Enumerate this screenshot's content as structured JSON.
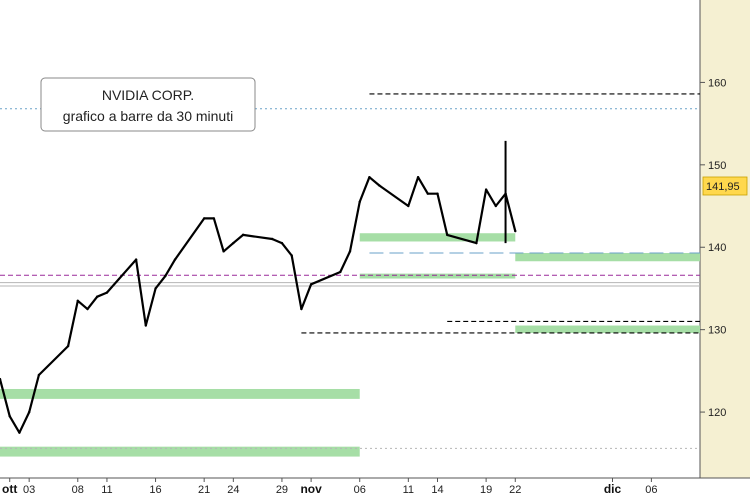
{
  "chart_data": {
    "type": "line",
    "title": "NVIDIA CORP.",
    "subtitle": "grafico a barre da 30 minuti",
    "last_price_label": "141,95",
    "colors": {
      "price": "#000000",
      "support_zone": "#a6dea6",
      "right_panel": "#f5f0d2",
      "last_price_box": "#ffd84d",
      "dotted_blue": "#6aa2c8",
      "dotted_purple": "#9a2a9a",
      "dotted_grey": "#b5b5b5",
      "axis_line": "#555555"
    },
    "y_axis": {
      "ticks": [
        {
          "value": 120,
          "label": "120"
        },
        {
          "value": 130,
          "label": "130"
        },
        {
          "value": 140,
          "label": "140"
        },
        {
          "value": 150,
          "label": "150"
        },
        {
          "value": 160,
          "label": "160"
        }
      ],
      "range": [
        112,
        170
      ]
    },
    "x_axis": {
      "ticks": [
        {
          "date": "2024-10-01",
          "label": "ott",
          "bold": true
        },
        {
          "date": "2024-10-03",
          "label": "03",
          "bold": false
        },
        {
          "date": "2024-10-08",
          "label": "08",
          "bold": false
        },
        {
          "date": "2024-10-11",
          "label": "11",
          "bold": false
        },
        {
          "date": "2024-10-16",
          "label": "16",
          "bold": false
        },
        {
          "date": "2024-10-21",
          "label": "21",
          "bold": false
        },
        {
          "date": "2024-10-24",
          "label": "24",
          "bold": false
        },
        {
          "date": "2024-10-29",
          "label": "29",
          "bold": false
        },
        {
          "date": "2024-11-01",
          "label": "nov",
          "bold": true
        },
        {
          "date": "2024-11-06",
          "label": "06",
          "bold": false
        },
        {
          "date": "2024-11-11",
          "label": "11",
          "bold": false
        },
        {
          "date": "2024-11-14",
          "label": "14",
          "bold": false
        },
        {
          "date": "2024-11-19",
          "label": "19",
          "bold": false
        },
        {
          "date": "2024-11-22",
          "label": "22",
          "bold": false
        },
        {
          "date": "2024-12-02",
          "label": "dic",
          "bold": true
        },
        {
          "date": "2024-12-06",
          "label": "06",
          "bold": false
        }
      ],
      "range": [
        "2024-09-30",
        "2024-12-11"
      ]
    },
    "series": [
      {
        "points": [
          [
            "2024-09-30",
            124.0
          ],
          [
            "2024-10-01",
            119.5
          ],
          [
            "2024-10-02",
            117.5
          ],
          [
            "2024-10-03",
            120.0
          ],
          [
            "2024-10-04",
            124.5
          ],
          [
            "2024-10-07",
            128.0
          ],
          [
            "2024-10-08",
            133.5
          ],
          [
            "2024-10-09",
            132.5
          ],
          [
            "2024-10-10",
            134.0
          ],
          [
            "2024-10-11",
            134.5
          ],
          [
            "2024-10-14",
            138.5
          ],
          [
            "2024-10-15",
            130.5
          ],
          [
            "2024-10-16",
            135.0
          ],
          [
            "2024-10-17",
            136.5
          ],
          [
            "2024-10-18",
            138.5
          ],
          [
            "2024-10-21",
            143.5
          ],
          [
            "2024-10-22",
            143.5
          ],
          [
            "2024-10-23",
            139.5
          ],
          [
            "2024-10-24",
            140.5
          ],
          [
            "2024-10-25",
            141.5
          ],
          [
            "2024-10-28",
            141.0
          ],
          [
            "2024-10-29",
            140.5
          ],
          [
            "2024-10-30",
            139.0
          ],
          [
            "2024-10-31",
            132.5
          ],
          [
            "2024-11-01",
            135.5
          ],
          [
            "2024-11-04",
            137.0
          ],
          [
            "2024-11-05",
            139.5
          ],
          [
            "2024-11-06",
            145.5
          ],
          [
            "2024-11-07",
            148.5
          ],
          [
            "2024-11-08",
            147.5
          ],
          [
            "2024-11-11",
            145.0
          ],
          [
            "2024-11-12",
            148.5
          ],
          [
            "2024-11-13",
            146.5
          ],
          [
            "2024-11-14",
            146.5
          ],
          [
            "2024-11-15",
            141.5
          ],
          [
            "2024-11-18",
            140.5
          ],
          [
            "2024-11-19",
            147.0
          ],
          [
            "2024-11-20",
            145.0
          ],
          [
            "2024-11-21",
            146.5
          ],
          [
            "2024-11-22",
            141.95
          ]
        ]
      }
    ],
    "spikes": [
      {
        "date": "2024-11-21",
        "high": 152.9,
        "low": 140.5
      }
    ],
    "support_zones": [
      {
        "from": "2024-09-30",
        "to": "2024-11-06",
        "low": 121.6,
        "high": 122.8
      },
      {
        "from": "2024-09-30",
        "to": "2024-11-06",
        "low": 114.6,
        "high": 115.8
      },
      {
        "from": "2024-11-06",
        "to": "2024-11-22",
        "low": 140.7,
        "high": 141.7
      },
      {
        "from": "2024-11-06",
        "to": "2024-11-22",
        "low": 136.2,
        "high": 136.8
      },
      {
        "from": "2024-11-22",
        "to": "2024-12-11",
        "low": 138.3,
        "high": 139.3
      },
      {
        "from": "2024-11-22",
        "to": "2024-12-11",
        "low": 129.6,
        "high": 130.5
      }
    ],
    "reference_lines": [
      {
        "value": 156.8,
        "from": "2024-09-30",
        "to": "2024-12-11",
        "style": "dotted",
        "color": "dotted_blue"
      },
      {
        "value": 136.6,
        "from": "2024-09-30",
        "to": "2024-12-11",
        "style": "dashed",
        "color": "dotted_purple"
      },
      {
        "value": 135.7,
        "from": "2024-09-30",
        "to": "2024-12-11",
        "style": "solid",
        "color": "dotted_grey"
      },
      {
        "value": 135.3,
        "from": "2024-09-30",
        "to": "2024-12-11",
        "style": "solid",
        "color": "dotted_grey"
      },
      {
        "value": 115.6,
        "from": "2024-09-30",
        "to": "2024-12-11",
        "style": "dotted",
        "color": "dotted_grey"
      },
      {
        "value": 158.6,
        "from": "2024-11-07",
        "to": "2024-12-11",
        "style": "dashed",
        "color": "price"
      },
      {
        "value": 131.0,
        "from": "2024-11-15",
        "to": "2024-12-11",
        "style": "dashed",
        "color": "price"
      },
      {
        "value": 129.6,
        "from": "2024-10-31",
        "to": "2024-12-11",
        "style": "dashed",
        "color": "price"
      },
      {
        "value": 139.3,
        "from": "2024-11-07",
        "to": "2024-12-11",
        "style": "longdash",
        "color": "dotted_blue"
      }
    ]
  }
}
